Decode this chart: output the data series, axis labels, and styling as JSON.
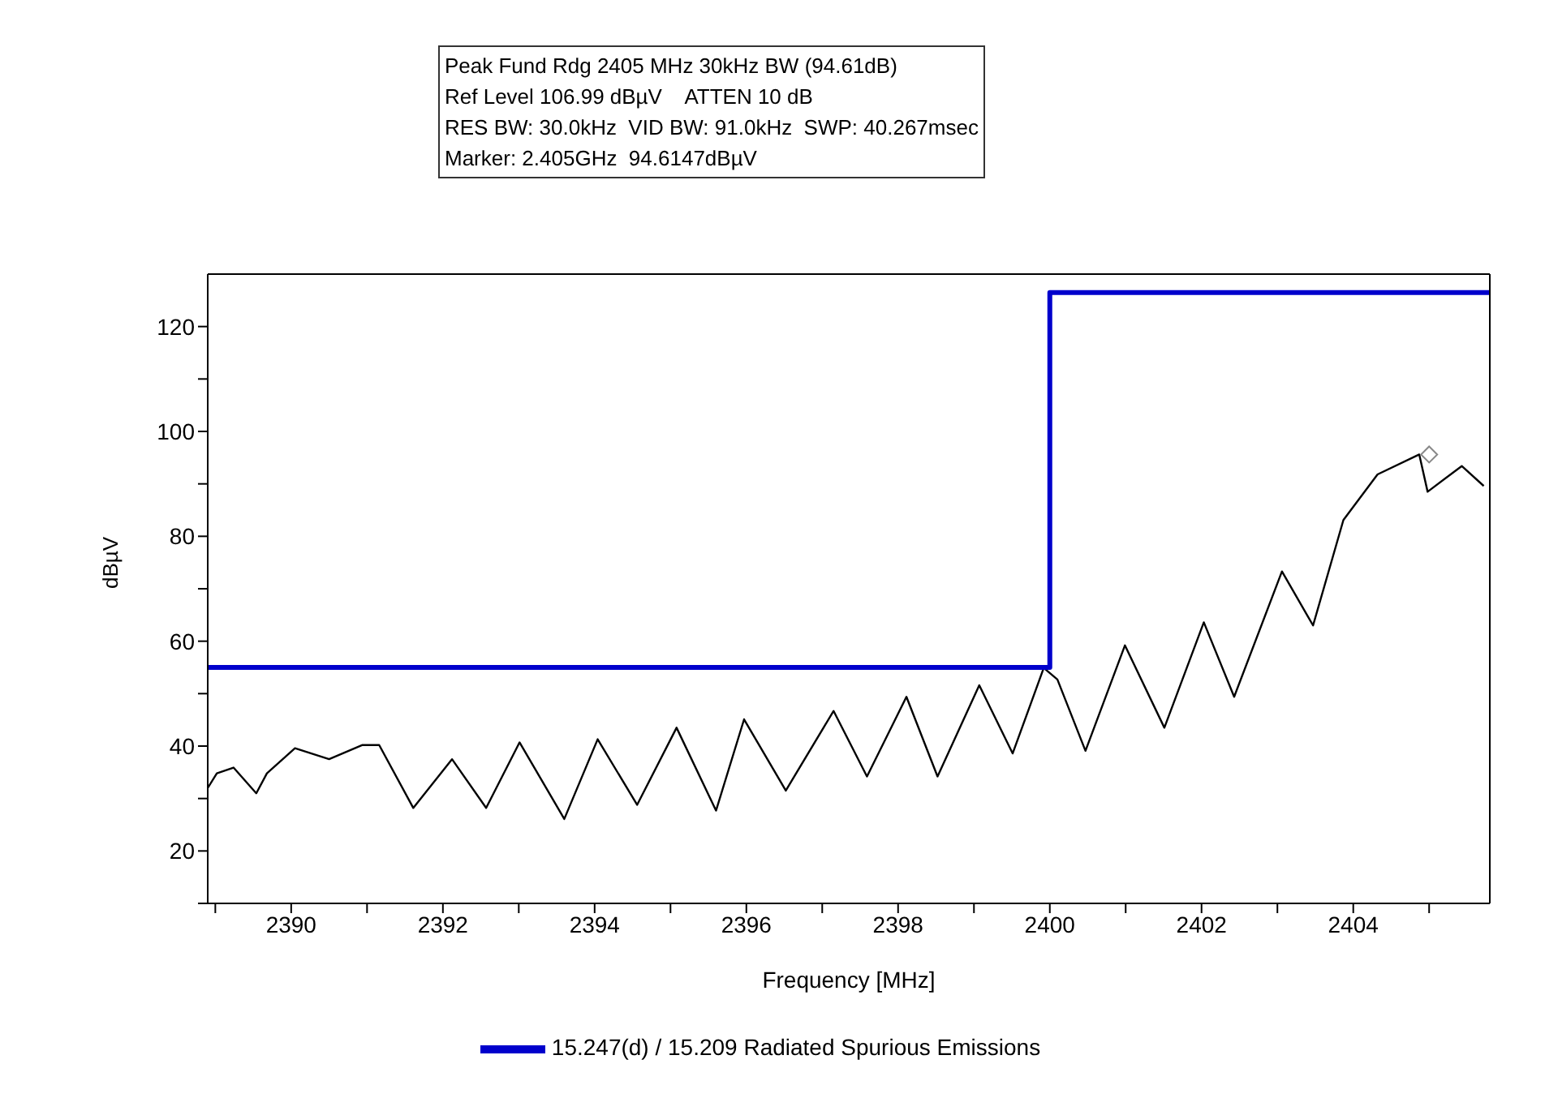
{
  "chart_data": {
    "type": "line",
    "xlabel": "Frequency [MHz]",
    "ylabel": "dBµV",
    "annotations": [
      "Peak Fund Rdg 2405 MHz 30kHz BW (94.61dB)",
      "Ref Level 106.99 dBµV    ATTEN 10 dB",
      "RES BW: 30.0kHz  VID BW: 91.0kHz  SWP: 40.267msec",
      "Marker: 2.405GHz  94.6147dBµV"
    ],
    "xlim": [
      2388.9,
      2405.8
    ],
    "xticks": [
      {
        "value": 2389,
        "label": null
      },
      2390,
      {
        "value": 2391,
        "label": null
      },
      2392,
      {
        "value": 2393,
        "label": null
      },
      2394,
      {
        "value": 2395,
        "label": null
      },
      2396,
      {
        "value": 2397,
        "label": null
      },
      2398,
      {
        "value": 2399,
        "label": null
      },
      2400,
      {
        "value": 2401,
        "label": null
      },
      2402,
      {
        "value": 2403,
        "label": null
      },
      2404,
      {
        "value": 2405,
        "label": null
      }
    ],
    "ylim": [
      10,
      130
    ],
    "yticks": [
      {
        "value": 10,
        "label": null
      },
      20,
      {
        "value": 30,
        "label": null
      },
      40,
      {
        "value": 50,
        "label": null
      },
      60,
      {
        "value": 70,
        "label": null
      },
      80,
      {
        "value": 90,
        "label": null
      },
      100,
      {
        "value": 110,
        "label": null
      },
      120
    ],
    "legend": "bottom",
    "line_style": "solid",
    "marker": "none",
    "series": [
      {
        "color": "#000000",
        "x": [
          2388.9,
          2389.02,
          2389.24,
          2389.54,
          2389.68,
          2390.05,
          2390.5,
          2390.94,
          2391.16,
          2391.61,
          2392.12,
          2392.57,
          2393.01,
          2393.6,
          2394.04,
          2394.56,
          2395.08,
          2395.6,
          2395.97,
          2396.52,
          2397.15,
          2397.59,
          2398.11,
          2398.52,
          2399.07,
          2399.51,
          2399.92,
          2400.1,
          2400.47,
          2400.99,
          2401.51,
          2402.03,
          2402.43,
          2403.06,
          2403.47,
          2403.87,
          2404.32,
          2404.87,
          2404.98,
          2405.43,
          2405.72
        ],
        "values": [
          32.0,
          34.8,
          35.9,
          31.0,
          34.8,
          39.6,
          37.5,
          40.2,
          40.2,
          28.2,
          37.5,
          28.2,
          40.7,
          26.1,
          41.3,
          28.8,
          43.5,
          27.7,
          45.1,
          31.5,
          46.7,
          34.2,
          49.4,
          34.2,
          51.6,
          38.6,
          54.9,
          52.7,
          39.1,
          59.2,
          43.5,
          63.6,
          49.4,
          73.3,
          63.0,
          83.1,
          91.8,
          95.6,
          88.5,
          93.4,
          89.6
        ]
      },
      {
        "type": "step",
        "name": "15.247(d) / 15.209 Radiated Spurious Emissions",
        "color": "#0000cc",
        "x": [
          2388.9,
          2400,
          2405.8
        ],
        "values": [
          55,
          126.5,
          126.5
        ]
      },
      {
        "type": "scatter",
        "marker": "diamond",
        "color": "#888888",
        "x": [
          2405
        ],
        "values": [
          95.6
        ]
      }
    ]
  }
}
